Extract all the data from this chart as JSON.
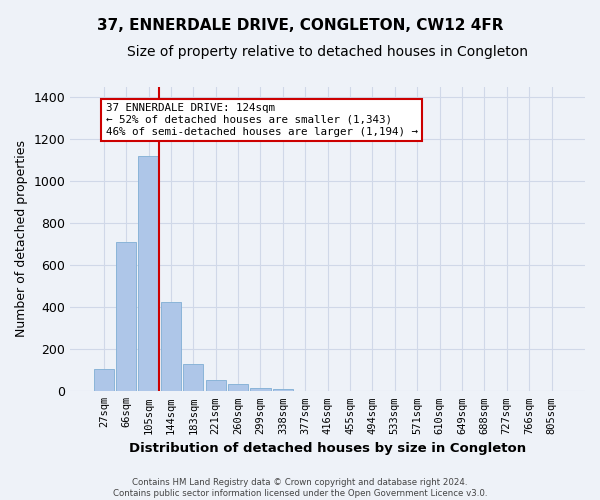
{
  "title": "37, ENNERDALE DRIVE, CONGLETON, CW12 4FR",
  "subtitle": "Size of property relative to detached houses in Congleton",
  "xlabel": "Distribution of detached houses by size in Congleton",
  "ylabel": "Number of detached properties",
  "bar_labels": [
    "27sqm",
    "66sqm",
    "105sqm",
    "144sqm",
    "183sqm",
    "221sqm",
    "260sqm",
    "299sqm",
    "338sqm",
    "377sqm",
    "416sqm",
    "455sqm",
    "494sqm",
    "533sqm",
    "571sqm",
    "610sqm",
    "649sqm",
    "688sqm",
    "727sqm",
    "766sqm",
    "805sqm"
  ],
  "bar_values": [
    105,
    710,
    1120,
    425,
    130,
    55,
    33,
    18,
    12,
    0,
    0,
    0,
    0,
    0,
    0,
    0,
    0,
    0,
    0,
    0,
    0
  ],
  "bar_color": "#aec6e8",
  "bar_edge_color": "#8ab4d8",
  "grid_color": "#d0d8e8",
  "bg_color": "#eef2f8",
  "vline_color": "#cc0000",
  "annotation_text": "37 ENNERDALE DRIVE: 124sqm\n← 52% of detached houses are smaller (1,343)\n46% of semi-detached houses are larger (1,194) →",
  "annotation_box_color": "#cc0000",
  "ylim": [
    0,
    1450
  ],
  "footnote": "Contains HM Land Registry data © Crown copyright and database right 2024.\nContains public sector information licensed under the Open Government Licence v3.0.",
  "title_fontsize": 11,
  "subtitle_fontsize": 10,
  "xlabel_fontsize": 9.5,
  "ylabel_fontsize": 9
}
